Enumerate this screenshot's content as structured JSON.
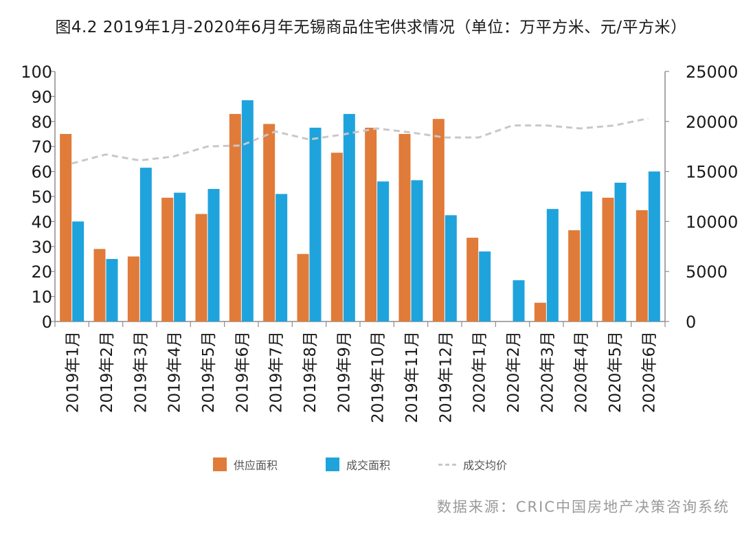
{
  "title": "图4.2 2019年1月-2020年6月年无锡商品住宅供求情况（单位：万平方米、元/平方米）",
  "source": "数据来源：CRIC中国房地产决策咨询系统",
  "chart_data": {
    "type": "bar",
    "categories": [
      "2019年1月",
      "2019年2月",
      "2019年3月",
      "2019年4月",
      "2019年5月",
      "2019年6月",
      "2019年7月",
      "2019年8月",
      "2019年9月",
      "2019年10月",
      "2019年11月",
      "2019年12月",
      "2020年1月",
      "2020年2月",
      "2020年3月",
      "2020年4月",
      "2020年5月",
      "2020年6月"
    ],
    "series": [
      {
        "name": "供应面积",
        "type": "bar",
        "axis": "left",
        "color": "#e07b39",
        "values": [
          75,
          29,
          26,
          49.5,
          43,
          83,
          79,
          27,
          67.5,
          77.5,
          75,
          81,
          33.5,
          0,
          7.5,
          36.5,
          49.5,
          44.5
        ]
      },
      {
        "name": "成交面积",
        "type": "bar",
        "axis": "left",
        "color": "#1fa3dc",
        "values": [
          40,
          25,
          61.5,
          51.5,
          53,
          88.5,
          51,
          77.5,
          83,
          56,
          56.5,
          42.5,
          28,
          16.5,
          45,
          52,
          55.5,
          60
        ]
      },
      {
        "name": "成交均价",
        "type": "line",
        "axis": "right",
        "color": "#c8c8c8",
        "values": [
          15800,
          16700,
          16100,
          16500,
          17500,
          17600,
          19000,
          18200,
          18700,
          19300,
          18900,
          18400,
          18400,
          19600,
          19600,
          19300,
          19600,
          20300
        ]
      }
    ],
    "ylim": [
      0,
      100
    ],
    "y2lim": [
      0,
      25000
    ],
    "yticks": [
      0,
      10,
      20,
      30,
      40,
      50,
      60,
      70,
      80,
      90,
      100
    ],
    "y2ticks": [
      0,
      5000,
      10000,
      15000,
      20000,
      25000
    ],
    "legend": "bottom",
    "grid": false
  }
}
